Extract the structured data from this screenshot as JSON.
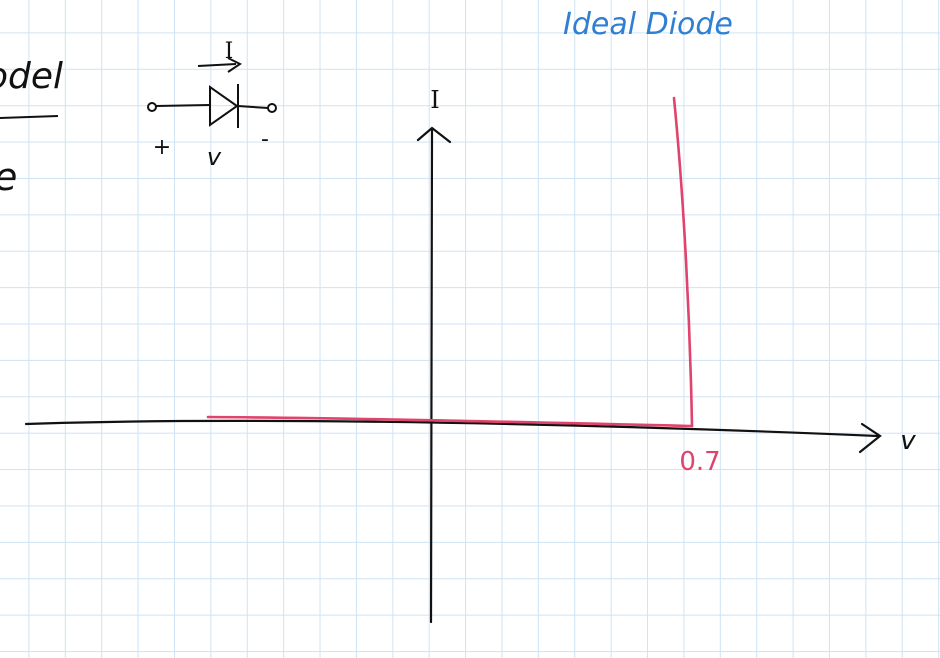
{
  "page": {
    "title": "Ideal Diode",
    "partial_text_left_1": "odel",
    "partial_text_left_2": "e"
  },
  "diode_symbol": {
    "current_label": "I",
    "plus_label": "+",
    "voltage_label": "v",
    "minus_label": "-"
  },
  "graph": {
    "y_axis_label": "I",
    "x_axis_label": "v",
    "threshold_label": "0.7"
  },
  "colors": {
    "ink": "#111111",
    "title": "#2f7fd3",
    "curve": "#e0436b",
    "grid": "#cfe3f4"
  }
}
